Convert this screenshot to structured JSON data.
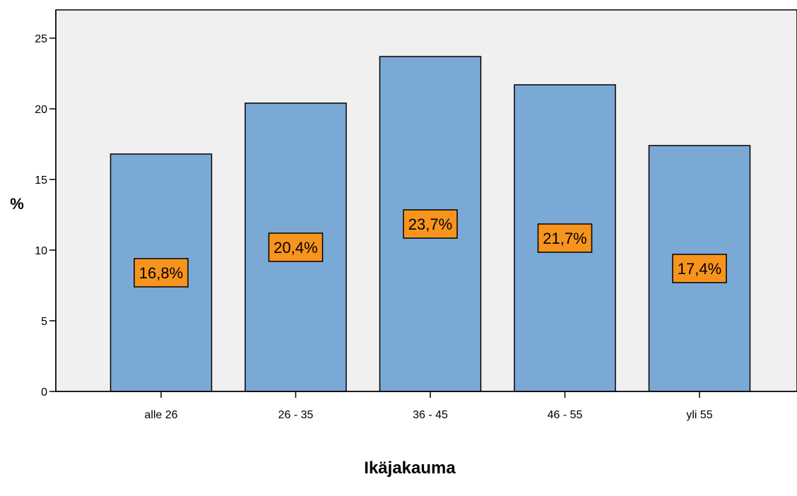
{
  "chart_data": {
    "type": "bar",
    "title": "",
    "xlabel": "Ikäjakauma",
    "ylabel": "%",
    "categories": [
      "alle 26",
      "26 - 35",
      "36 - 45",
      "46 - 55",
      "yli 55"
    ],
    "values": [
      16.8,
      20.4,
      23.7,
      21.7,
      17.4
    ],
    "data_labels": [
      "16,8%",
      "20,4%",
      "23,7%",
      "21,7%",
      "17,4%"
    ],
    "ylim": [
      0,
      27
    ],
    "yticks": [
      0,
      5,
      10,
      15,
      20,
      25
    ],
    "grid": false,
    "legend": "none",
    "colors": {
      "bar_fill": "#7ba9d6",
      "bar_stroke": "#000000",
      "label_fill": "#f7941d",
      "plot_background": "#f0f0f0"
    }
  }
}
